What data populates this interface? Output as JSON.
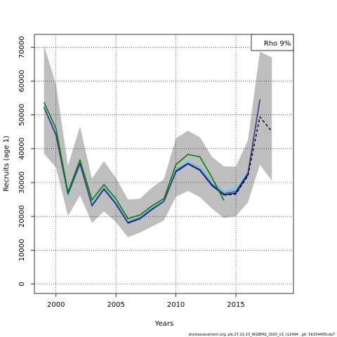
{
  "chart_data": {
    "type": "line",
    "title": "",
    "xlabel": "Years",
    "ylabel": "Recruits (age 1)",
    "xlim": [
      1998.2,
      2019.8
    ],
    "ylim": [
      -2800,
      73800
    ],
    "xticks": [
      2000,
      2005,
      2010,
      2015
    ],
    "yticks": [
      0,
      10000,
      20000,
      30000,
      40000,
      50000,
      60000,
      70000
    ],
    "grid": true,
    "legend": {
      "position": "top-right",
      "label": "Rho 9%"
    },
    "colors": {
      "band": "#bebebe",
      "series_band": "#87ceeb",
      "base": "#000080",
      "retro_2014": "#008000",
      "retro_2015": "#6cc1da",
      "retro_2016": "#87ceeb",
      "retro_2017": "#483d8b",
      "forecast": "#000000"
    },
    "band": {
      "x": [
        1999,
        2000,
        2001,
        2002,
        2003,
        2004,
        2005,
        2006,
        2007,
        2008,
        2009,
        2010,
        2011,
        2012,
        2013,
        2014,
        2015,
        2016,
        2017,
        2018
      ],
      "upper": [
        70600,
        59000,
        35000,
        46600,
        31200,
        36300,
        31400,
        25000,
        25200,
        28500,
        31000,
        43100,
        45300,
        43400,
        37600,
        34800,
        34700,
        42500,
        68700,
        67000
      ],
      "lower": [
        38500,
        34500,
        20100,
        26200,
        18000,
        21500,
        18300,
        13800,
        15200,
        17000,
        18800,
        25800,
        27500,
        25700,
        22300,
        19500,
        20100,
        24100,
        35300,
        30500
      ]
    },
    "series": [
      {
        "name": "",
        "key": "retro_2016",
        "x": [
          1999,
          2000,
          2001,
          2002,
          2003,
          2004,
          2005,
          2006,
          2007,
          2008,
          2009,
          2010,
          2011,
          2012,
          2013,
          2014,
          2015,
          2016
        ],
        "values": [
          52500,
          44300,
          25700,
          35300,
          23700,
          28300,
          24100,
          18300,
          19600,
          22500,
          24700,
          33700,
          36500,
          34300,
          30000,
          27500,
          28500,
          33600
        ]
      },
      {
        "name": "",
        "key": "retro_2015",
        "x": [
          1999,
          2000,
          2001,
          2002,
          2003,
          2004,
          2005,
          2006,
          2007,
          2008,
          2009,
          2010,
          2011,
          2012,
          2013,
          2014,
          2015
        ],
        "values": [
          52700,
          44500,
          26300,
          35600,
          24100,
          28700,
          24400,
          18600,
          19800,
          22700,
          25000,
          34100,
          36000,
          34600,
          30500,
          27100,
          28300
        ]
      },
      {
        "name": "",
        "key": "base",
        "x": [
          1999,
          2000,
          2001,
          2002,
          2003,
          2004,
          2005,
          2006,
          2007,
          2008,
          2009,
          2010,
          2011,
          2012,
          2013,
          2014,
          2015,
          2016,
          2017
        ],
        "values": [
          52200,
          44000,
          26600,
          35500,
          23100,
          28000,
          23600,
          18000,
          19300,
          22000,
          24400,
          33200,
          35500,
          33600,
          29100,
          26300,
          26900,
          32300,
          54500
        ]
      },
      {
        "name": "",
        "key": "retro_2017",
        "x": [
          1999,
          2000,
          2001,
          2002,
          2003,
          2004,
          2005,
          2006,
          2007,
          2008,
          2009,
          2010,
          2011,
          2012,
          2013,
          2014,
          2015,
          2016,
          2017
        ],
        "values": [
          52300,
          44200,
          26700,
          35700,
          23300,
          28200,
          23800,
          18200,
          19500,
          22200,
          24500,
          33500,
          35700,
          33900,
          29500,
          26700,
          27400,
          32800,
          54600
        ]
      },
      {
        "name": "",
        "key": "retro_2014",
        "x": [
          1999,
          2000,
          2001,
          2002,
          2003,
          2004,
          2005,
          2006,
          2007,
          2008,
          2009,
          2010,
          2011,
          2012,
          2013,
          2014
        ],
        "values": [
          53700,
          46000,
          27100,
          36700,
          24900,
          29400,
          25200,
          19300,
          20400,
          23100,
          25200,
          35300,
          38300,
          37600,
          31500,
          24700
        ]
      },
      {
        "name": "",
        "key": "forecast",
        "dashed": true,
        "x": [
          2014,
          2015,
          2016,
          2017,
          2018
        ],
        "values": [
          26300,
          26600,
          32000,
          49400,
          45100
        ]
      }
    ]
  },
  "footer": "stockassessment.org, ple.27.21-23_WGBFAS_2020_v3, r12494 , git: 5b334405cda7"
}
